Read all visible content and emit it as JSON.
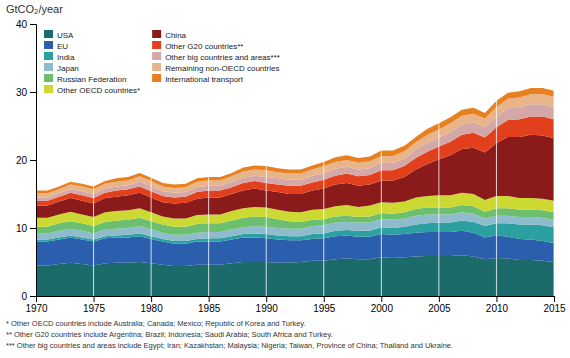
{
  "chart_data": {
    "type": "area",
    "stacked": true,
    "y_label": "GtCO₂/year",
    "x": [
      1970,
      1971,
      1972,
      1973,
      1974,
      1975,
      1976,
      1977,
      1978,
      1979,
      1980,
      1981,
      1982,
      1983,
      1984,
      1985,
      1986,
      1987,
      1988,
      1989,
      1990,
      1991,
      1992,
      1993,
      1994,
      1995,
      1996,
      1997,
      1998,
      1999,
      2000,
      2001,
      2002,
      2003,
      2004,
      2005,
      2006,
      2007,
      2008,
      2009,
      2010,
      2011,
      2012,
      2013,
      2014,
      2015
    ],
    "series": [
      {
        "name": "USA",
        "color": "#1b6b6b",
        "values": [
          4.5,
          4.5,
          4.7,
          4.9,
          4.7,
          4.5,
          4.8,
          4.9,
          4.9,
          5.0,
          4.8,
          4.6,
          4.4,
          4.4,
          4.6,
          4.6,
          4.6,
          4.8,
          5.0,
          5.0,
          5.0,
          4.9,
          4.9,
          5.0,
          5.2,
          5.2,
          5.4,
          5.5,
          5.4,
          5.4,
          5.7,
          5.6,
          5.7,
          5.8,
          5.9,
          5.9,
          5.9,
          6.0,
          5.8,
          5.4,
          5.6,
          5.5,
          5.3,
          5.3,
          5.2,
          5.0
        ]
      },
      {
        "name": "EU",
        "color": "#2b5fad",
        "values": [
          3.5,
          3.5,
          3.6,
          3.7,
          3.6,
          3.5,
          3.7,
          3.7,
          3.7,
          3.8,
          3.6,
          3.4,
          3.3,
          3.3,
          3.4,
          3.4,
          3.4,
          3.5,
          3.6,
          3.6,
          3.5,
          3.4,
          3.3,
          3.2,
          3.2,
          3.3,
          3.4,
          3.4,
          3.3,
          3.3,
          3.4,
          3.4,
          3.4,
          3.5,
          3.5,
          3.5,
          3.5,
          3.6,
          3.5,
          3.2,
          3.3,
          3.2,
          3.1,
          3.0,
          2.9,
          2.8
        ]
      },
      {
        "name": "India",
        "color": "#2aa0a0",
        "values": [
          0.3,
          0.3,
          0.3,
          0.3,
          0.3,
          0.3,
          0.3,
          0.3,
          0.4,
          0.4,
          0.4,
          0.4,
          0.4,
          0.4,
          0.4,
          0.5,
          0.5,
          0.5,
          0.5,
          0.6,
          0.6,
          0.6,
          0.6,
          0.6,
          0.7,
          0.7,
          0.8,
          0.8,
          0.9,
          0.9,
          1.0,
          1.0,
          1.1,
          1.2,
          1.3,
          1.4,
          1.4,
          1.5,
          1.6,
          1.7,
          1.8,
          2.0,
          2.1,
          2.2,
          2.3,
          2.3
        ]
      },
      {
        "name": "Japan",
        "color": "#8ebccc",
        "values": [
          0.9,
          0.9,
          1.0,
          1.0,
          1.0,
          0.9,
          1.0,
          1.0,
          1.0,
          1.1,
          1.0,
          0.9,
          0.9,
          0.9,
          0.9,
          0.9,
          0.9,
          1.0,
          1.0,
          1.1,
          1.1,
          1.1,
          1.1,
          1.1,
          1.2,
          1.2,
          1.2,
          1.2,
          1.2,
          1.2,
          1.2,
          1.2,
          1.2,
          1.3,
          1.3,
          1.2,
          1.2,
          1.2,
          1.2,
          1.1,
          1.1,
          1.1,
          1.1,
          1.1,
          1.1,
          1.1
        ]
      },
      {
        "name": "Russian Federation",
        "color": "#6bbf6e",
        "values": [
          1.0,
          1.0,
          1.1,
          1.1,
          1.1,
          1.1,
          1.1,
          1.2,
          1.2,
          1.2,
          1.2,
          1.2,
          1.2,
          1.2,
          1.3,
          1.3,
          1.3,
          1.3,
          1.4,
          1.4,
          1.4,
          1.3,
          1.1,
          1.0,
          0.9,
          0.9,
          0.9,
          0.9,
          0.8,
          0.9,
          0.9,
          0.9,
          0.9,
          1.0,
          1.0,
          1.0,
          1.0,
          1.1,
          1.1,
          1.0,
          1.1,
          1.1,
          1.1,
          1.1,
          1.1,
          1.1
        ]
      },
      {
        "name": "Other OECD countries*",
        "color": "#ccd932",
        "values": [
          1.3,
          1.3,
          1.3,
          1.4,
          1.3,
          1.3,
          1.4,
          1.4,
          1.4,
          1.4,
          1.3,
          1.2,
          1.2,
          1.2,
          1.3,
          1.3,
          1.3,
          1.4,
          1.4,
          1.4,
          1.4,
          1.4,
          1.4,
          1.4,
          1.5,
          1.5,
          1.5,
          1.6,
          1.5,
          1.6,
          1.6,
          1.6,
          1.6,
          1.7,
          1.7,
          1.8,
          1.8,
          1.8,
          1.8,
          1.7,
          1.8,
          1.8,
          1.7,
          1.7,
          1.7,
          1.7
        ]
      },
      {
        "name": "China",
        "color": "#8b1a1a",
        "values": [
          1.8,
          1.8,
          1.9,
          2.0,
          2.0,
          2.0,
          2.1,
          2.1,
          2.2,
          2.3,
          2.2,
          2.1,
          2.2,
          2.3,
          2.4,
          2.5,
          2.5,
          2.5,
          2.6,
          2.7,
          2.5,
          2.6,
          2.6,
          2.7,
          2.8,
          3.0,
          3.2,
          3.2,
          3.1,
          3.1,
          3.2,
          3.3,
          3.6,
          4.1,
          4.7,
          5.3,
          5.9,
          6.4,
          6.8,
          7.0,
          7.8,
          8.7,
          9.0,
          9.3,
          9.3,
          9.2
        ]
      },
      {
        "name": "Other G20 countries**",
        "color": "#e2401c",
        "values": [
          0.7,
          0.7,
          0.7,
          0.8,
          0.8,
          0.8,
          0.8,
          0.9,
          0.9,
          0.9,
          0.9,
          0.9,
          0.9,
          0.9,
          1.0,
          1.0,
          1.0,
          1.0,
          1.1,
          1.1,
          1.1,
          1.1,
          1.2,
          1.2,
          1.2,
          1.3,
          1.3,
          1.4,
          1.4,
          1.4,
          1.5,
          1.5,
          1.6,
          1.7,
          1.8,
          1.9,
          2.0,
          2.1,
          2.2,
          2.2,
          2.3,
          2.5,
          2.6,
          2.7,
          2.8,
          2.8
        ]
      },
      {
        "name": "Other big countries and areas***",
        "color": "#d4a8a8",
        "values": [
          0.5,
          0.5,
          0.5,
          0.5,
          0.6,
          0.6,
          0.6,
          0.6,
          0.6,
          0.7,
          0.7,
          0.7,
          0.7,
          0.7,
          0.7,
          0.7,
          0.7,
          0.8,
          0.8,
          0.8,
          0.9,
          0.9,
          0.9,
          0.9,
          1.0,
          1.0,
          1.0,
          1.0,
          1.0,
          1.0,
          1.1,
          1.1,
          1.1,
          1.2,
          1.3,
          1.3,
          1.4,
          1.5,
          1.5,
          1.5,
          1.6,
          1.7,
          1.7,
          1.8,
          1.8,
          1.8
        ]
      },
      {
        "name": "Remaining non-OECD countries",
        "color": "#e8b48a",
        "values": [
          0.6,
          0.6,
          0.6,
          0.7,
          0.7,
          0.7,
          0.7,
          0.7,
          0.7,
          0.8,
          0.8,
          0.7,
          0.7,
          0.7,
          0.8,
          0.8,
          0.8,
          0.8,
          0.9,
          0.9,
          1.0,
          0.9,
          0.9,
          0.9,
          0.9,
          1.0,
          1.0,
          1.0,
          1.0,
          1.0,
          1.0,
          1.0,
          1.1,
          1.1,
          1.2,
          1.2,
          1.3,
          1.3,
          1.3,
          1.3,
          1.4,
          1.4,
          1.5,
          1.5,
          1.5,
          1.5
        ]
      },
      {
        "name": "International transport",
        "color": "#e88020",
        "values": [
          0.4,
          0.4,
          0.4,
          0.4,
          0.4,
          0.4,
          0.4,
          0.5,
          0.5,
          0.5,
          0.5,
          0.5,
          0.5,
          0.5,
          0.5,
          0.5,
          0.5,
          0.5,
          0.6,
          0.6,
          0.6,
          0.6,
          0.6,
          0.6,
          0.6,
          0.6,
          0.7,
          0.7,
          0.7,
          0.7,
          0.8,
          0.8,
          0.8,
          0.8,
          0.9,
          0.9,
          0.9,
          0.9,
          0.9,
          0.8,
          0.9,
          0.9,
          0.9,
          0.9,
          0.9,
          0.9
        ]
      }
    ],
    "xlim": [
      1970,
      2015
    ],
    "xticks": [
      1970,
      1975,
      1980,
      1985,
      1990,
      1995,
      2000,
      2005,
      2010,
      2015
    ],
    "ylim": [
      0,
      40
    ],
    "yticks": [
      0,
      10,
      20,
      30,
      40
    ],
    "grid": "x",
    "legend": "upper left",
    "annotations": [
      "* Other OECD countries include Australia; Canada; Mexico; Republic of Korea and Turkey.",
      "** Other G20 countries include Argentina; Brazil; Indonesia; Saudi Arabia; South Africa and Turkey.",
      "*** Other big countries and areas include Egypt; Iran; Kazakhstan; Malaysia; Nigeria; Taiwan, Province of China; Thailand and Ukraine."
    ]
  }
}
